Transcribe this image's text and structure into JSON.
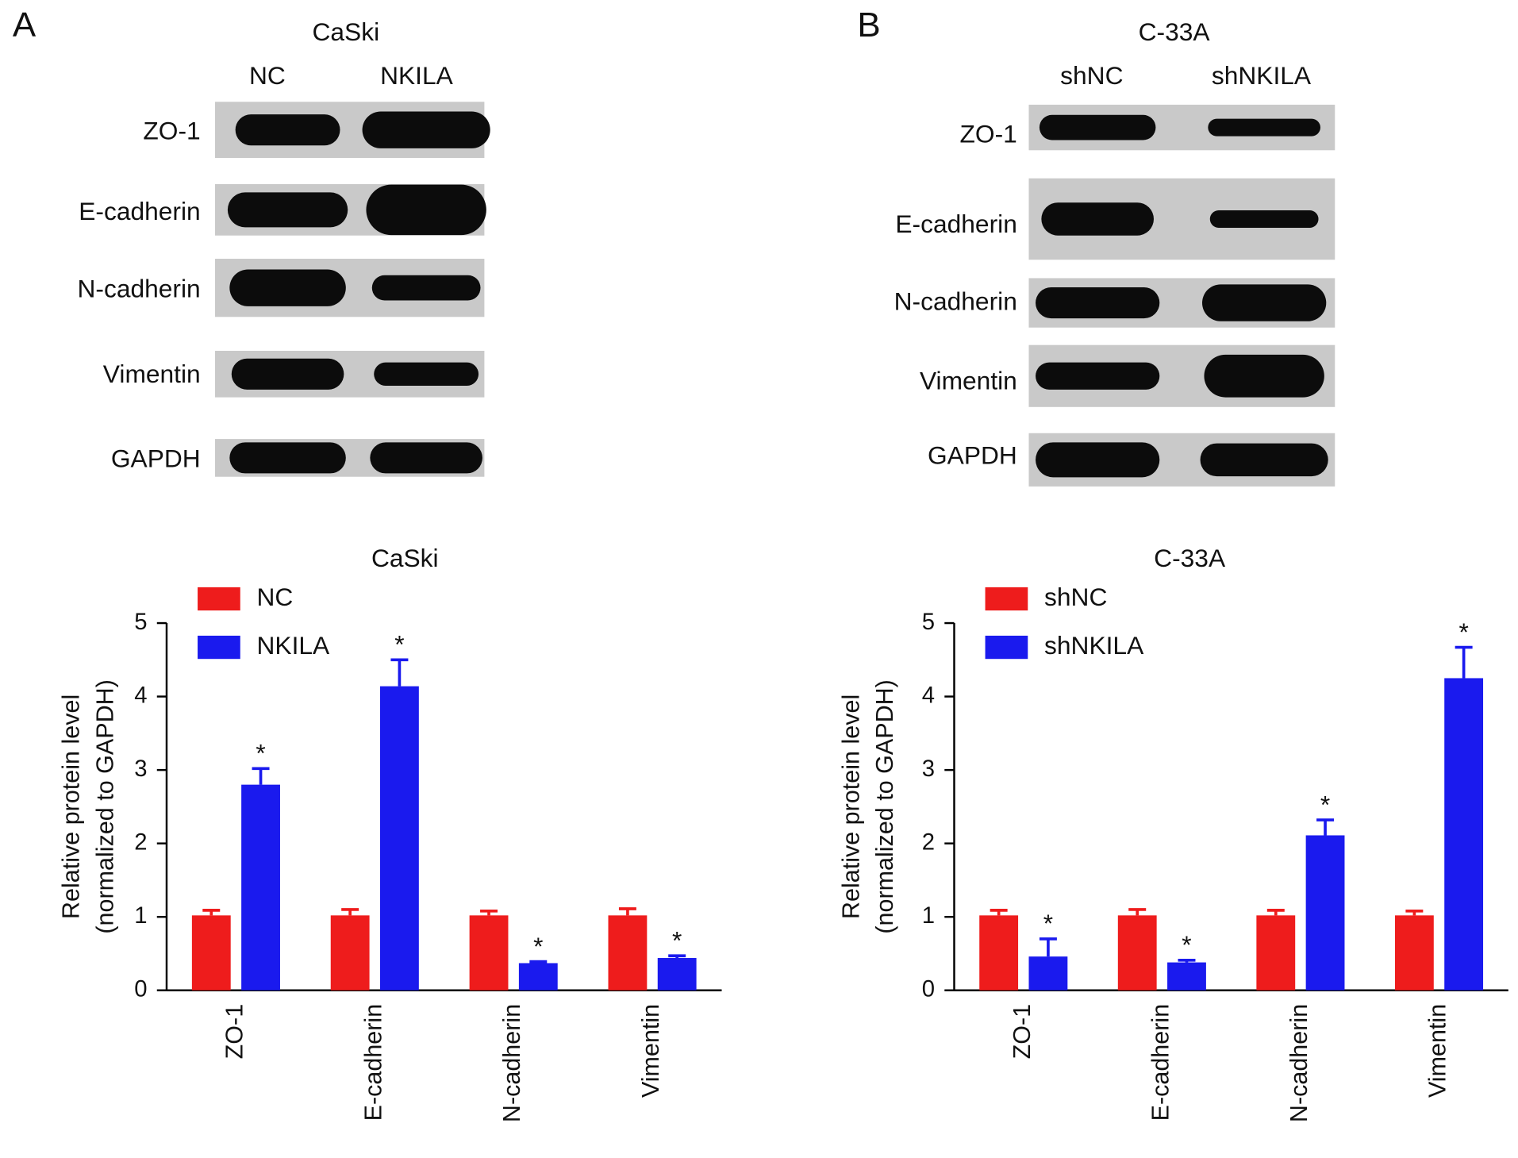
{
  "panel_labels": [
    "A",
    "B"
  ],
  "blots": [
    {
      "title": "CaSki",
      "lanes": [
        "NC",
        "NKILA"
      ],
      "rows": [
        "ZO-1",
        "E-cadherin",
        "N-cadherin",
        "Vimentin",
        "GAPDH"
      ]
    },
    {
      "title": "C-33A",
      "lanes": [
        "shNC",
        "shNKILA"
      ],
      "rows": [
        "ZO-1",
        "E-cadherin",
        "N-cadherin",
        "Vimentin",
        "GAPDH"
      ]
    }
  ],
  "chart_data": [
    {
      "type": "bar",
      "title": "CaSki",
      "ylabel": [
        "Relative protein level",
        "(normalized to GAPDH)"
      ],
      "categories": [
        "ZO-1",
        "E-cadherin",
        "N-cadherin",
        "Vimentin"
      ],
      "series": [
        {
          "name": "NC",
          "color": "#ee1c1c",
          "values": [
            1.02,
            1.02,
            1.02,
            1.02
          ],
          "errors": [
            0.07,
            0.08,
            0.06,
            0.09
          ],
          "significance": [
            null,
            null,
            null,
            null
          ]
        },
        {
          "name": "NKILA",
          "color": "#1a1aee",
          "values": [
            2.8,
            4.14,
            0.37,
            0.44
          ],
          "errors": [
            0.22,
            0.36,
            0.02,
            0.03
          ],
          "significance": [
            "*",
            "*",
            "*",
            "*"
          ]
        }
      ],
      "ylim": [
        0,
        5
      ],
      "yticks": [
        0,
        1,
        2,
        3,
        4,
        5
      ]
    },
    {
      "type": "bar",
      "title": "C-33A",
      "ylabel": [
        "Relative protein level",
        "(normalized to GAPDH)"
      ],
      "categories": [
        "ZO-1",
        "E-cadherin",
        "N-cadherin",
        "Vimentin"
      ],
      "series": [
        {
          "name": "shNC",
          "color": "#ee1c1c",
          "values": [
            1.02,
            1.02,
            1.02,
            1.02
          ],
          "errors": [
            0.07,
            0.08,
            0.07,
            0.06
          ],
          "significance": [
            null,
            null,
            null,
            null
          ]
        },
        {
          "name": "shNKILA",
          "color": "#1a1aee",
          "values": [
            0.46,
            0.38,
            2.11,
            4.25
          ],
          "errors": [
            0.24,
            0.03,
            0.21,
            0.42
          ],
          "significance": [
            "*",
            "*",
            "*",
            "*"
          ]
        }
      ],
      "ylim": [
        0,
        5
      ],
      "yticks": [
        0,
        1,
        2,
        3,
        4,
        5
      ]
    }
  ]
}
